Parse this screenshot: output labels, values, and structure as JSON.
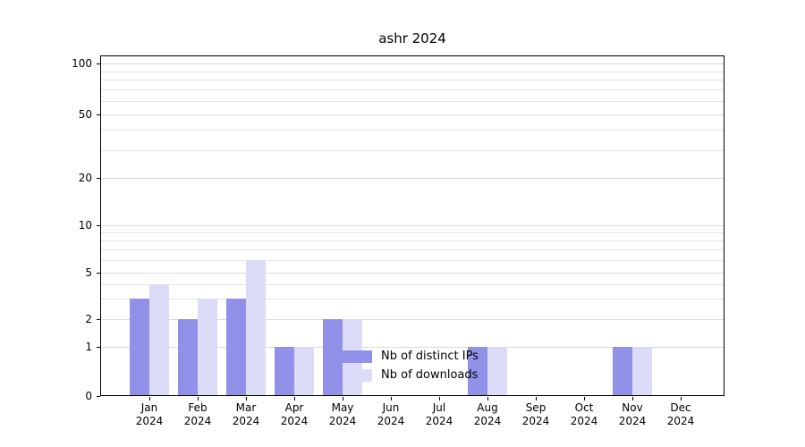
{
  "chart_data": {
    "type": "bar",
    "title": "ashr 2024",
    "categories": [
      {
        "month": "Jan",
        "year": "2024"
      },
      {
        "month": "Feb",
        "year": "2024"
      },
      {
        "month": "Mar",
        "year": "2024"
      },
      {
        "month": "Apr",
        "year": "2024"
      },
      {
        "month": "May",
        "year": "2024"
      },
      {
        "month": "Jun",
        "year": "2024"
      },
      {
        "month": "Jul",
        "year": "2024"
      },
      {
        "month": "Aug",
        "year": "2024"
      },
      {
        "month": "Sep",
        "year": "2024"
      },
      {
        "month": "Oct",
        "year": "2024"
      },
      {
        "month": "Nov",
        "year": "2024"
      },
      {
        "month": "Dec",
        "year": "2024"
      }
    ],
    "series": [
      {
        "name": "Nb of distinct IPs",
        "color": "#9191e9",
        "values": [
          3,
          2,
          3,
          1,
          2,
          0,
          0,
          1,
          0,
          0,
          1,
          0
        ]
      },
      {
        "name": "Nb of downloads",
        "color": "#dcdcf8",
        "values": [
          4,
          3,
          6,
          1,
          2,
          0,
          0,
          1,
          0,
          0,
          1,
          0
        ]
      }
    ],
    "yticks": [
      0,
      1,
      2,
      5,
      10,
      20,
      50,
      100
    ],
    "ylim": [
      0,
      120
    ],
    "yscale": "symlog",
    "grid": "horizontal",
    "legend_position": "lower center",
    "xlabel": "",
    "ylabel": ""
  }
}
